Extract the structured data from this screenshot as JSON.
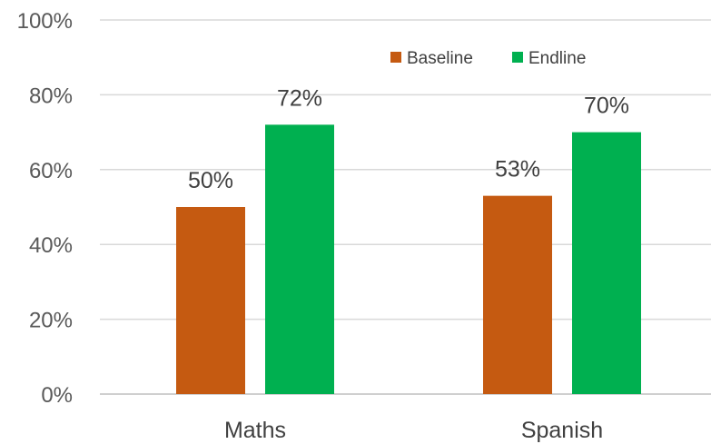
{
  "chart_data": {
    "type": "bar",
    "categories": [
      "Maths",
      "Spanish"
    ],
    "series": [
      {
        "name": "Baseline",
        "color": "#c55a11",
        "values": [
          50,
          53
        ],
        "labels": [
          "50%",
          "53%"
        ]
      },
      {
        "name": "Endline",
        "color": "#00b050",
        "values": [
          72,
          70
        ],
        "labels": [
          "72%",
          "70%"
        ]
      }
    ],
    "ylim": [
      0,
      100
    ],
    "yticks": [
      0,
      20,
      40,
      60,
      80,
      100
    ],
    "ytick_labels": [
      "0%",
      "20%",
      "40%",
      "60%",
      "80%",
      "100%"
    ],
    "grid": true,
    "legend_position": "top-right",
    "title": "",
    "xlabel": "",
    "ylabel": ""
  }
}
